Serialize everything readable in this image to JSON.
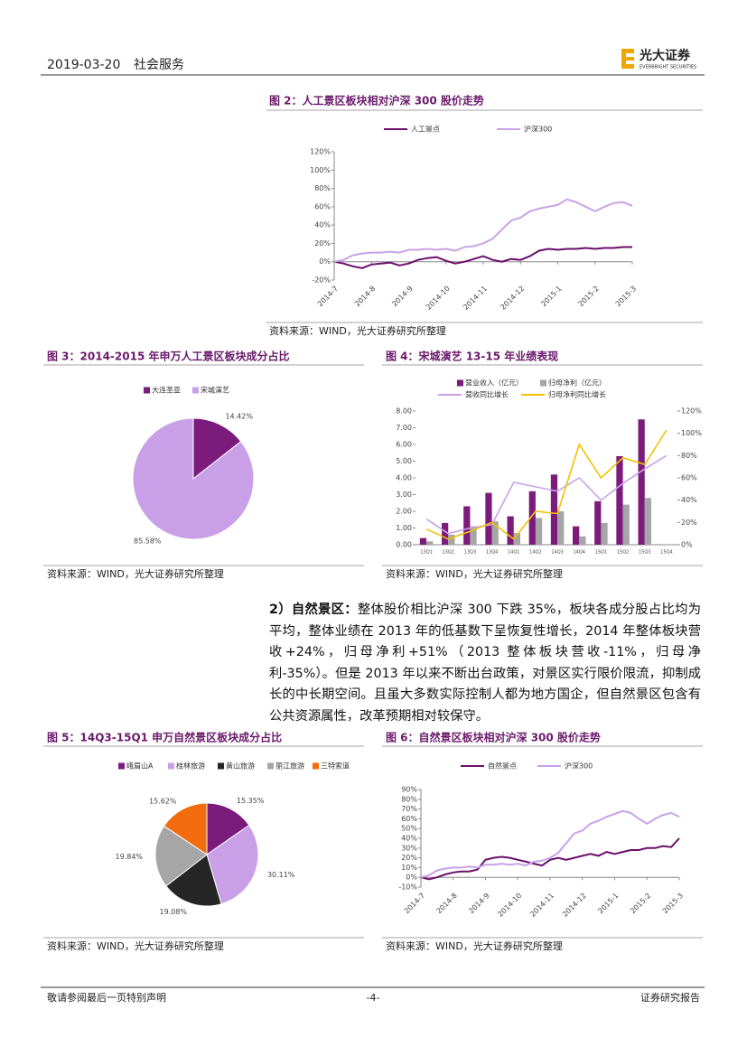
{
  "header": {
    "date": "2019-03-20",
    "sector": "社会服务",
    "logo": "光大证券",
    "logo_en": "EVERBRIGHT SECURITIES"
  },
  "paragraph": {
    "lead": "2）自然景区：",
    "text": "整体股价相比沪深 300 下跌 35%，板块各成分股占比均为平均，整体业绩在 2013 年的低基数下呈恢复性增长，2014 年整体板块营收+24%，归母净利+51%（2013 整体板块营收-11%，归母净利-35%）。但是 2013 年以来不断出台政策，对景区实行限价限流，抑制成长的中长期空间。且虽大多数实际控制人都为地方国企，但自然景区包含有公共资源属性，改革预期相对较保守。"
  },
  "footer": {
    "left": "敬请参阅最后一页特别声明",
    "page": "-4-",
    "right": "证券研究报告"
  },
  "chart_data": [
    {
      "type": "line",
      "title": "图 2：人工景区板块相对沪深 300 股价走势",
      "source": "资料来源：WIND，光大证券研究所整理",
      "categories": [
        "2014-7",
        null,
        null,
        null,
        "2014-8",
        null,
        null,
        null,
        "2014-9",
        null,
        null,
        null,
        "2014-10",
        null,
        null,
        null,
        "2014-11",
        null,
        null,
        null,
        "2014-12",
        null,
        null,
        null,
        "2015-1",
        null,
        null,
        null,
        "2015-2",
        null,
        null,
        null,
        "2015-3"
      ],
      "series": [
        {
          "name": "人工景点",
          "color": "#6a0f6a",
          "values": [
            0,
            -2,
            -5,
            -7,
            -3,
            -2,
            -1,
            -4,
            -2,
            2,
            4,
            5,
            1,
            -2,
            0,
            3,
            6,
            2,
            0,
            3,
            2,
            6,
            12,
            14,
            13,
            14,
            14,
            15,
            14,
            15,
            15,
            16,
            16
          ]
        },
        {
          "name": "沪深300",
          "color": "#c8a2e8",
          "values": [
            0,
            2,
            7,
            9,
            10,
            10,
            11,
            10,
            13,
            13,
            14,
            13,
            14,
            12,
            16,
            17,
            20,
            25,
            35,
            45,
            48,
            55,
            58,
            60,
            62,
            68,
            65,
            60,
            55,
            60,
            64,
            65,
            61
          ]
        }
      ],
      "ylim": [
        -20,
        120
      ],
      "yticks": [
        {
          "value": -20,
          "label": "-20%"
        },
        {
          "value": 0,
          "label": "0%"
        },
        {
          "value": 20,
          "label": "20%"
        },
        {
          "value": 40,
          "label": "40%"
        },
        {
          "value": 60,
          "label": "60%"
        },
        {
          "value": 80,
          "label": "80%"
        },
        {
          "value": 100,
          "label": "100%"
        },
        {
          "value": 120,
          "label": "120%"
        }
      ]
    },
    {
      "type": "pie",
      "title": "图 3：2014-2015 年申万人工景区板块成分占比",
      "source": "资料来源：WIND，光大证券研究所整理",
      "categories": [
        "大连圣亚",
        "宋城演艺"
      ],
      "values": [
        14.42,
        85.58
      ],
      "value_labels": [
        "14.42%",
        "85.58%"
      ],
      "colors": [
        "#7b1b7b",
        "#c9a0e8"
      ]
    },
    {
      "type": "bar",
      "title": "图 4：宋城演艺 13-15 年业绩表现",
      "source": "资料来源：WIND，光大证券研究所整理",
      "categories": [
        "13Q1",
        "13Q2",
        "13Q3",
        "13Q4",
        "14Q1",
        "14Q2",
        "14Q3",
        "14Q4",
        "15Q1",
        "15Q2",
        "15Q3",
        "15Q4"
      ],
      "series": [
        {
          "name": "营业收入（亿元）",
          "color": "#7b1b7b",
          "values": [
            0.4,
            1.3,
            2.3,
            3.1,
            1.7,
            3.2,
            4.2,
            1.1,
            2.6,
            5.3,
            7.5,
            null
          ]
        },
        {
          "name": "归母净利（亿元）",
          "color": "#a6a6a6",
          "values": [
            0.2,
            0.6,
            1.1,
            1.4,
            0.7,
            1.6,
            2.0,
            0.5,
            1.3,
            2.4,
            2.8,
            null
          ]
        },
        {
          "name": "营收同比增长",
          "color": "#c8a2e8",
          "type": "line",
          "axis": "y2",
          "values": [
            23,
            10,
            15,
            18,
            56,
            52,
            48,
            60,
            40,
            55,
            68,
            80
          ]
        },
        {
          "name": "归母净利同比增长",
          "color": "#f2c200",
          "type": "line",
          "axis": "y2",
          "values": [
            14,
            5,
            12,
            20,
            5,
            30,
            28,
            90,
            60,
            78,
            72,
            103
          ]
        }
      ],
      "ylim": [
        0,
        8
      ],
      "yticks": [
        {
          "value": 0,
          "label": "0.00"
        },
        {
          "value": 1,
          "label": "1.00"
        },
        {
          "value": 2,
          "label": "2.00"
        },
        {
          "value": 3,
          "label": "3.00"
        },
        {
          "value": 4,
          "label": "4.00"
        },
        {
          "value": 5,
          "label": "5.00"
        },
        {
          "value": 6,
          "label": "6.00"
        },
        {
          "value": 7,
          "label": "7.00"
        },
        {
          "value": 8,
          "label": "8.00"
        }
      ],
      "y2lim": [
        0,
        120
      ],
      "y2ticks": [
        {
          "value": 0,
          "label": "0%"
        },
        {
          "value": 20,
          "label": "20%"
        },
        {
          "value": 40,
          "label": "40%"
        },
        {
          "value": 60,
          "label": "60%"
        },
        {
          "value": 80,
          "label": "80%"
        },
        {
          "value": 100,
          "label": "100%"
        },
        {
          "value": 120,
          "label": "120%"
        }
      ]
    },
    {
      "type": "pie",
      "title": "图 5：14Q3-15Q1 申万自然景区板块成分占比",
      "source": "资料来源：WIND，光大证券研究所整理",
      "categories": [
        "峨眉山A",
        "桂林旅游",
        "黄山旅游",
        "丽江旅游",
        "三特索道"
      ],
      "values": [
        15.35,
        30.11,
        19.08,
        19.84,
        15.62
      ],
      "value_labels": [
        "15.35%",
        "30.11%",
        "19.08%",
        "19.84%",
        "15.62%"
      ],
      "colors": [
        "#7b1b7b",
        "#c9a0e8",
        "#262626",
        "#a6a6a6",
        "#f26c0d"
      ]
    },
    {
      "type": "line",
      "title": "图 6：自然景区板块相对沪深 300 股价走势",
      "source": "资料来源：WIND，光大证券研究所整理",
      "categories": [
        "2014-7",
        null,
        null,
        null,
        "2014-8",
        null,
        null,
        null,
        "2014-9",
        null,
        null,
        null,
        "2014-10",
        null,
        null,
        null,
        "2014-11",
        null,
        null,
        null,
        "2014-12",
        null,
        null,
        null,
        "2015-1",
        null,
        null,
        null,
        "2015-2",
        null,
        null,
        null,
        "2015-3"
      ],
      "series": [
        {
          "name": "自然景点",
          "color": "#6a0f6a",
          "values": [
            0,
            -2,
            0,
            3,
            5,
            6,
            6,
            8,
            18,
            20,
            21,
            20,
            18,
            16,
            14,
            12,
            18,
            20,
            18,
            20,
            22,
            24,
            22,
            26,
            24,
            26,
            28,
            28,
            30,
            30,
            32,
            31,
            40
          ]
        },
        {
          "name": "沪深300",
          "color": "#c8a2e8",
          "values": [
            0,
            2,
            7,
            9,
            10,
            10,
            11,
            10,
            13,
            13,
            14,
            13,
            14,
            12,
            16,
            17,
            20,
            25,
            35,
            45,
            48,
            55,
            58,
            62,
            65,
            68,
            66,
            60,
            55,
            60,
            64,
            66,
            62
          ]
        }
      ],
      "ylim": [
        -10,
        90
      ],
      "yticks": [
        {
          "value": -10,
          "label": "-10%"
        },
        {
          "value": 0,
          "label": "0%"
        },
        {
          "value": 10,
          "label": "10%"
        },
        {
          "value": 20,
          "label": "20%"
        },
        {
          "value": 30,
          "label": "30%"
        },
        {
          "value": 40,
          "label": "40%"
        },
        {
          "value": 50,
          "label": "50%"
        },
        {
          "value": 60,
          "label": "60%"
        },
        {
          "value": 70,
          "label": "70%"
        },
        {
          "value": 80,
          "label": "80%"
        },
        {
          "value": 90,
          "label": "90%"
        }
      ]
    }
  ]
}
